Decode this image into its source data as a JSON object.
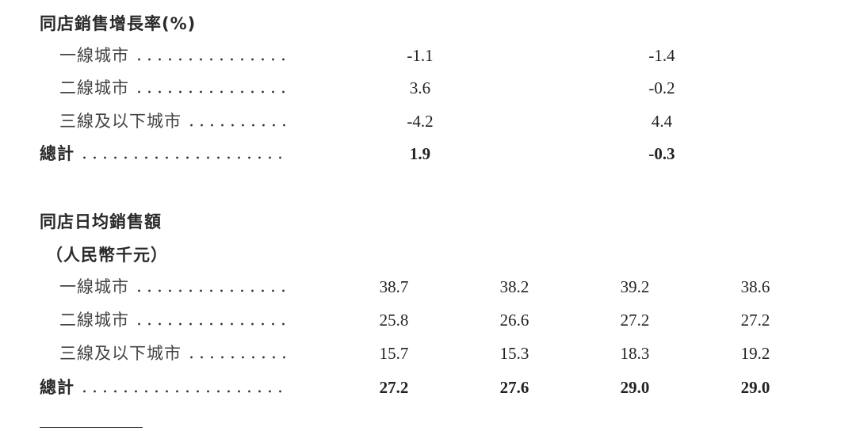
{
  "section1": {
    "title": "同店銷售增長率(%)",
    "rows": [
      {
        "label": "一線城市",
        "values": [
          "-1.1",
          "-1.4"
        ]
      },
      {
        "label": "二線城市",
        "values": [
          "3.6",
          "-0.2"
        ]
      },
      {
        "label": "三線及以下城市",
        "values": [
          "-4.2",
          "4.4"
        ]
      },
      {
        "label": "總計",
        "values": [
          "1.9",
          "-0.3"
        ],
        "total": true
      }
    ]
  },
  "section2": {
    "title": "同店日均銷售額",
    "subtitle": "（人民幣千元）",
    "rows": [
      {
        "label": "一線城市",
        "values": [
          "38.7",
          "38.2",
          "39.2",
          "38.6"
        ]
      },
      {
        "label": "二線城市",
        "values": [
          "25.8",
          "26.6",
          "27.2",
          "27.2"
        ]
      },
      {
        "label": "三線及以下城市",
        "values": [
          "15.7",
          "15.3",
          "18.3",
          "19.2"
        ]
      },
      {
        "label": "總計",
        "values": [
          "27.2",
          "27.6",
          "29.0",
          "29.0"
        ],
        "total": true
      }
    ]
  }
}
